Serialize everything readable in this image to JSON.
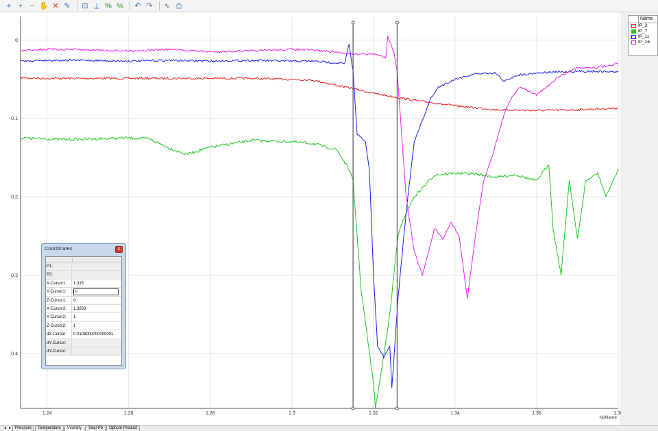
{
  "toolbar": {
    "icons": [
      "cursor-icon",
      "add-icon",
      "remove-icon",
      "hand-icon",
      "delete-icon",
      "pen-icon",
      "zoom-area-icon",
      "zoom-axis-icon",
      "percent-icon",
      "percent-alt-icon",
      "undo-zoom-icon",
      "redo-zoom-icon",
      "curve-icon",
      "print-icon"
    ]
  },
  "legend": {
    "header": "Name",
    "items": [
      {
        "label": "IP_3",
        "color": "#ee1c1c"
      },
      {
        "label": "IP_7",
        "color": "#1ec81e"
      },
      {
        "label": "IP_11",
        "color": "#1c1cee"
      },
      {
        "label": "IP_16",
        "color": "#ee20ee"
      }
    ]
  },
  "chart_data": {
    "type": "line",
    "x_ticks": [
      "1.24",
      "1.26",
      "1.28",
      "1.3",
      "1.32",
      "1.34",
      "1.36",
      "1.38"
    ],
    "y_ticks": [
      "0",
      "-0.1",
      "-0.2",
      "-0.3",
      "-0.4"
    ],
    "xlim": [
      1.2335,
      1.38
    ],
    "ylim": [
      -0.47,
      0.03
    ],
    "x_axis_name": "NoName",
    "grid": true,
    "cursors": [
      1.315,
      1.3258
    ],
    "series": [
      {
        "name": "IP_3",
        "color": "#ee1c1c",
        "x": [
          1.2335,
          1.238,
          1.2395,
          1.25,
          1.27,
          1.29,
          1.305,
          1.311,
          1.315,
          1.32,
          1.33,
          1.34,
          1.35,
          1.36,
          1.37,
          1.38
        ],
        "y": [
          -0.048,
          -0.049,
          -0.049,
          -0.049,
          -0.049,
          -0.049,
          -0.051,
          -0.058,
          -0.062,
          -0.068,
          -0.077,
          -0.084,
          -0.089,
          -0.09,
          -0.089,
          -0.087
        ]
      },
      {
        "name": "IP_7",
        "color": "#1ec81e",
        "x": [
          1.2335,
          1.238,
          1.245,
          1.26,
          1.265,
          1.27,
          1.274,
          1.28,
          1.29,
          1.3,
          1.305,
          1.311,
          1.314,
          1.315,
          1.317,
          1.32,
          1.3205,
          1.322,
          1.324,
          1.326,
          1.328,
          1.33,
          1.335,
          1.34,
          1.345,
          1.35,
          1.355,
          1.36,
          1.363,
          1.364,
          1.366,
          1.368,
          1.37,
          1.372,
          1.375,
          1.377,
          1.38
        ],
        "y": [
          -0.125,
          -0.126,
          -0.127,
          -0.125,
          -0.126,
          -0.138,
          -0.146,
          -0.137,
          -0.128,
          -0.13,
          -0.132,
          -0.14,
          -0.165,
          -0.18,
          -0.32,
          -0.438,
          -0.47,
          -0.42,
          -0.35,
          -0.25,
          -0.22,
          -0.2,
          -0.172,
          -0.17,
          -0.171,
          -0.175,
          -0.172,
          -0.18,
          -0.158,
          -0.24,
          -0.3,
          -0.178,
          -0.255,
          -0.18,
          -0.17,
          -0.2,
          -0.165
        ]
      },
      {
        "name": "IP_11",
        "color": "#1c1cee",
        "x": [
          1.2335,
          1.238,
          1.25,
          1.26,
          1.27,
          1.28,
          1.29,
          1.3,
          1.305,
          1.313,
          1.314,
          1.315,
          1.316,
          1.318,
          1.319,
          1.32,
          1.321,
          1.3225,
          1.324,
          1.3245,
          1.326,
          1.328,
          1.33,
          1.334,
          1.336,
          1.34,
          1.345,
          1.35,
          1.352,
          1.355,
          1.36,
          1.365,
          1.37,
          1.375,
          1.38
        ],
        "y": [
          -0.027,
          -0.026,
          -0.026,
          -0.027,
          -0.026,
          -0.027,
          -0.026,
          -0.027,
          -0.027,
          -0.03,
          -0.005,
          -0.04,
          -0.12,
          -0.13,
          -0.165,
          -0.3,
          -0.39,
          -0.405,
          -0.39,
          -0.445,
          -0.33,
          -0.22,
          -0.13,
          -0.075,
          -0.06,
          -0.05,
          -0.043,
          -0.042,
          -0.053,
          -0.045,
          -0.042,
          -0.041,
          -0.04,
          -0.04,
          -0.041
        ]
      },
      {
        "name": "IP_16",
        "color": "#ee20ee",
        "x": [
          1.2335,
          1.238,
          1.245,
          1.26,
          1.27,
          1.28,
          1.29,
          1.3,
          1.305,
          1.31,
          1.316,
          1.32,
          1.323,
          1.3235,
          1.325,
          1.3258,
          1.328,
          1.33,
          1.332,
          1.335,
          1.337,
          1.339,
          1.341,
          1.343,
          1.345,
          1.347,
          1.349,
          1.352,
          1.354,
          1.356,
          1.36,
          1.363,
          1.365,
          1.37,
          1.375,
          1.38
        ],
        "y": [
          -0.014,
          -0.012,
          -0.012,
          -0.014,
          -0.012,
          -0.015,
          -0.014,
          -0.012,
          -0.013,
          -0.015,
          -0.018,
          -0.018,
          -0.022,
          0.005,
          -0.015,
          -0.04,
          -0.2,
          -0.27,
          -0.3,
          -0.24,
          -0.255,
          -0.232,
          -0.25,
          -0.33,
          -0.25,
          -0.18,
          -0.15,
          -0.095,
          -0.072,
          -0.06,
          -0.07,
          -0.058,
          -0.048,
          -0.035,
          -0.035,
          -0.03
        ]
      }
    ]
  },
  "coords": {
    "title": "Coordinates",
    "close": "x",
    "rows": [
      {
        "label": "P1:",
        "value": "",
        "disabled": true
      },
      {
        "label": "P2:",
        "value": "",
        "disabled": true
      },
      {
        "label": "X-Cursor1:",
        "value": "1.315",
        "disabled": false
      },
      {
        "label": "Y-Cursor1:",
        "value": "0",
        "disabled": false,
        "input": true
      },
      {
        "label": "Z-Cursor1:",
        "value": "0",
        "disabled": false
      },
      {
        "label": "X-Cursor2:",
        "value": "1.3258",
        "disabled": false
      },
      {
        "label": "Y-Cursor2:",
        "value": "1",
        "disabled": false
      },
      {
        "label": "Z-Cursor2:",
        "value": "1",
        "disabled": false
      },
      {
        "label": "dX-Cursor:",
        "value": "0.0108000000000001",
        "disabled": false
      },
      {
        "label": "dY-Cursor:",
        "value": "",
        "disabled": true
      },
      {
        "label": "dY-Cursor:",
        "value": "",
        "disabled": true
      }
    ]
  },
  "statusbar": {
    "tabs": [
      "Pressure",
      "Temperature",
      "Visibility",
      "Total Pb",
      "Optical Product"
    ]
  }
}
